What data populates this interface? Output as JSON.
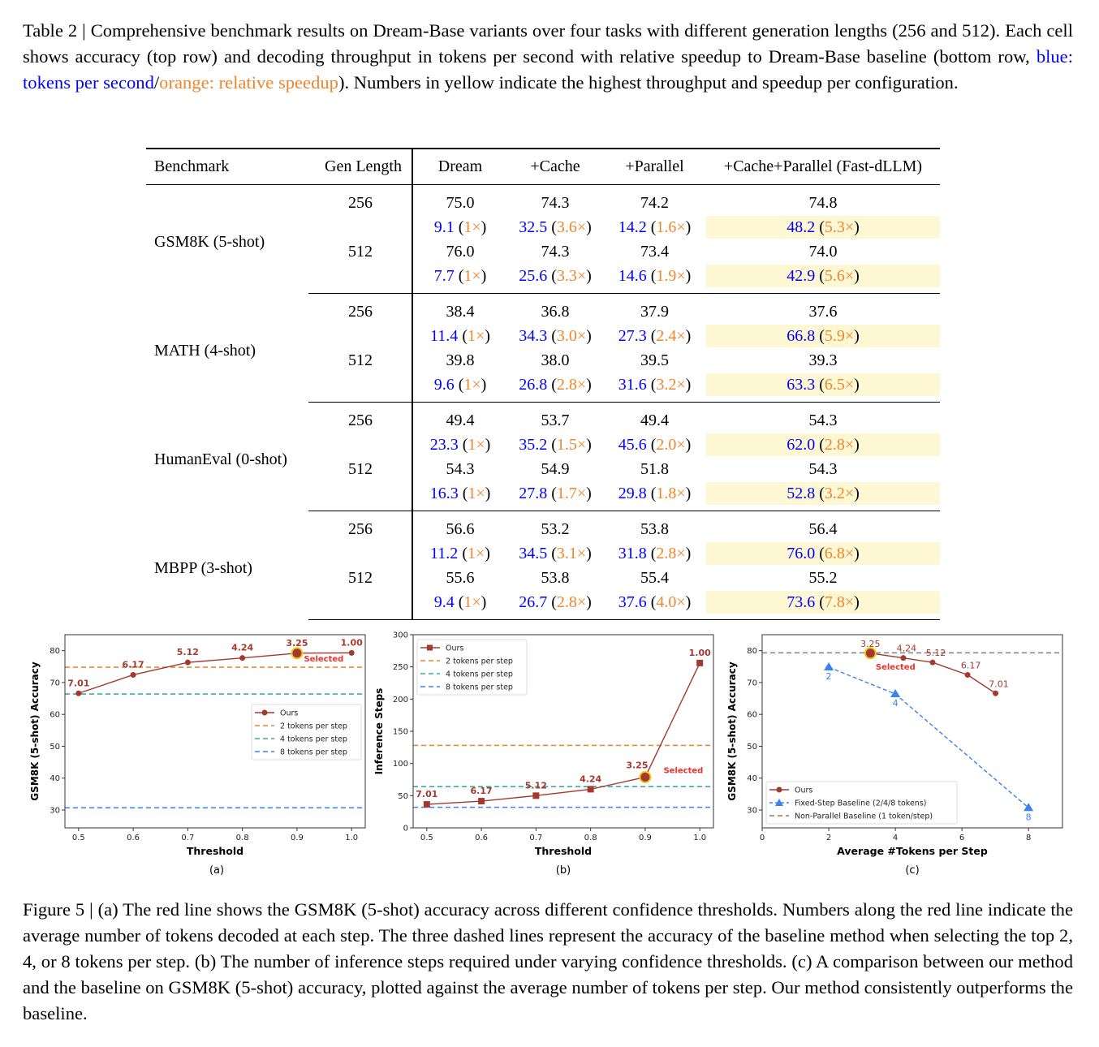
{
  "table_caption": {
    "part1": "Table 2 | Comprehensive benchmark results on Dream-Base variants over four tasks with different generation lengths (256 and 512). Each cell shows accuracy (top row) and decoding throughput in tokens per second with relative speedup to Dream-Base baseline (bottom row, ",
    "blue_text": "blue: tokens per second",
    "slash": "/",
    "orange_text": "orange: relative speedup",
    "part2": "). Numbers in yellow indicate the highest throughput and speedup per configuration."
  },
  "table": {
    "headers": [
      "Benchmark",
      "Gen Length",
      "Dream",
      "+Cache",
      "+Parallel",
      "+Cache+Parallel (Fast-dLLM)"
    ],
    "groups": [
      {
        "benchmark": "GSM8K (5-shot)",
        "rows": [
          {
            "gen": "256",
            "acc": [
              "75.0",
              "74.3",
              "74.2",
              "74.8"
            ],
            "tps": [
              "9.1",
              "32.5",
              "14.2",
              "48.2"
            ],
            "speedup": [
              "1×",
              "3.6×",
              "1.6×",
              "5.3×"
            ]
          },
          {
            "gen": "512",
            "acc": [
              "76.0",
              "74.3",
              "73.4",
              "74.0"
            ],
            "tps": [
              "7.7",
              "25.6",
              "14.6",
              "42.9"
            ],
            "speedup": [
              "1×",
              "3.3×",
              "1.9×",
              "5.6×"
            ]
          }
        ]
      },
      {
        "benchmark": "MATH (4-shot)",
        "rows": [
          {
            "gen": "256",
            "acc": [
              "38.4",
              "36.8",
              "37.9",
              "37.6"
            ],
            "tps": [
              "11.4",
              "34.3",
              "27.3",
              "66.8"
            ],
            "speedup": [
              "1×",
              "3.0×",
              "2.4×",
              "5.9×"
            ]
          },
          {
            "gen": "512",
            "acc": [
              "39.8",
              "38.0",
              "39.5",
              "39.3"
            ],
            "tps": [
              "9.6",
              "26.8",
              "31.6",
              "63.3"
            ],
            "speedup": [
              "1×",
              "2.8×",
              "3.2×",
              "6.5×"
            ]
          }
        ]
      },
      {
        "benchmark": "HumanEval (0-shot)",
        "rows": [
          {
            "gen": "256",
            "acc": [
              "49.4",
              "53.7",
              "49.4",
              "54.3"
            ],
            "tps": [
              "23.3",
              "35.2",
              "45.6",
              "62.0"
            ],
            "speedup": [
              "1×",
              "1.5×",
              "2.0×",
              "2.8×"
            ]
          },
          {
            "gen": "512",
            "acc": [
              "54.3",
              "54.9",
              "51.8",
              "54.3"
            ],
            "tps": [
              "16.3",
              "27.8",
              "29.8",
              "52.8"
            ],
            "speedup": [
              "1×",
              "1.7×",
              "1.8×",
              "3.2×"
            ]
          }
        ]
      },
      {
        "benchmark": "MBPP (3-shot)",
        "rows": [
          {
            "gen": "256",
            "acc": [
              "56.6",
              "53.2",
              "53.8",
              "56.4"
            ],
            "tps": [
              "11.2",
              "34.5",
              "31.8",
              "76.0"
            ],
            "speedup": [
              "1×",
              "3.1×",
              "2.8×",
              "6.8×"
            ]
          },
          {
            "gen": "512",
            "acc": [
              "55.6",
              "53.8",
              "55.4",
              "55.2"
            ],
            "tps": [
              "9.4",
              "26.7",
              "37.6",
              "73.6"
            ],
            "speedup": [
              "1×",
              "2.8×",
              "4.0×",
              "7.8×"
            ]
          }
        ]
      }
    ]
  },
  "colors": {
    "tps": "#0000ff",
    "speedup": "#f0852a",
    "highlight": "#fdf7d4",
    "ours": "#a33a2f",
    "two_tokens": "#e8892f",
    "four_tokens": "#3aada0",
    "eight_tokens": "#3b82f0",
    "non_parallel": "#7f7f7f",
    "selected_text": "#e8322a",
    "selected_ring": "#f5c518"
  },
  "chart_data": [
    {
      "type": "line",
      "sublabel": "(a)",
      "xlabel": "Threshold",
      "ylabel": "GSM8K (5-shot) Accuracy",
      "xlim": [
        0.475,
        1.025
      ],
      "ylim": [
        24.4,
        85
      ],
      "xticks": [
        "0.5",
        "0.6",
        "0.7",
        "0.8",
        "0.9",
        "1.0"
      ],
      "yticks": [
        "30",
        "40",
        "50",
        "60",
        "70",
        "80"
      ],
      "series": [
        {
          "name": "Ours",
          "x": [
            0.5,
            0.6,
            0.7,
            0.8,
            0.9,
            1.0
          ],
          "y": [
            66.6,
            72.4,
            76.3,
            77.7,
            79.2,
            79.3
          ],
          "point_labels": [
            "7.01",
            "6.17",
            "5.12",
            "4.24",
            "3.25",
            "1.00"
          ]
        }
      ],
      "hlines": [
        {
          "name": "2 tokens per step",
          "y": 74.8
        },
        {
          "name": "4 tokens per step",
          "y": 66.4
        },
        {
          "name": "8 tokens per step",
          "y": 30.7
        }
      ],
      "selected": {
        "x": 0.9,
        "y": 79.2,
        "label": "Selected"
      },
      "legend": "center-right"
    },
    {
      "type": "line",
      "sublabel": "(b)",
      "xlabel": "Threshold",
      "ylabel": "Inference Steps",
      "xlim": [
        0.475,
        1.025
      ],
      "ylim": [
        0,
        300
      ],
      "xticks": [
        "0.5",
        "0.6",
        "0.7",
        "0.8",
        "0.9",
        "1.0"
      ],
      "yticks": [
        "0",
        "50",
        "100",
        "150",
        "200",
        "250",
        "300"
      ],
      "series": [
        {
          "name": "Ours",
          "x": [
            0.5,
            0.6,
            0.7,
            0.8,
            0.9,
            1.0
          ],
          "y": [
            36.5,
            41.5,
            50,
            60,
            78.8,
            256
          ],
          "point_labels": [
            "7.01",
            "6.17",
            "5.12",
            "4.24",
            "3.25",
            "1.00"
          ]
        }
      ],
      "hlines": [
        {
          "name": "2 tokens per step",
          "y": 128
        },
        {
          "name": "4 tokens per step",
          "y": 64
        },
        {
          "name": "8 tokens per step",
          "y": 32
        }
      ],
      "selected": {
        "x": 0.9,
        "y": 78.8,
        "label": "Selected"
      },
      "legend": "top-left"
    },
    {
      "type": "line",
      "sublabel": "(c)",
      "xlabel": "Average #Tokens per Step",
      "ylabel": "GSM8K (5-shot) Accuracy",
      "xlim": [
        0,
        9.02
      ],
      "ylim": [
        24.4,
        85
      ],
      "xticks": [
        "0",
        "2",
        "4",
        "6",
        "8"
      ],
      "yticks": [
        "30",
        "40",
        "50",
        "60",
        "70",
        "80"
      ],
      "series": [
        {
          "name": "Ours",
          "x": [
            3.25,
            4.24,
            5.12,
            6.17,
            7.01
          ],
          "y": [
            79.2,
            77.7,
            76.3,
            72.4,
            66.6
          ],
          "point_labels": [
            "3.25",
            "4.24",
            "5.12",
            "6.17",
            "7.01"
          ]
        },
        {
          "name": "Fixed-Step Baseline (2/4/8 tokens)",
          "x": [
            2,
            4,
            8
          ],
          "y": [
            74.8,
            66.4,
            30.7
          ],
          "point_labels": [
            "2",
            "4",
            "8"
          ]
        }
      ],
      "hlines": [
        {
          "name": "Non-Parallel Baseline (1 token/step)",
          "y": 79.3
        }
      ],
      "selected": {
        "x": 3.25,
        "y": 79.2,
        "label": "Selected"
      },
      "legend": "bottom-left"
    }
  ],
  "figure_caption": "Figure 5 | (a) The red line shows the GSM8K (5-shot) accuracy across different confidence thresholds. Numbers along the red line indicate the average number of tokens decoded at each step. The three dashed lines represent the accuracy of the baseline method when selecting the top 2, 4, or 8 tokens per step. (b) The number of inference steps required under varying confidence thresholds. (c) A comparison between our method and the baseline on GSM8K (5-shot) accuracy, plotted against the average number of tokens per step. Our method consistently outperforms the baseline."
}
